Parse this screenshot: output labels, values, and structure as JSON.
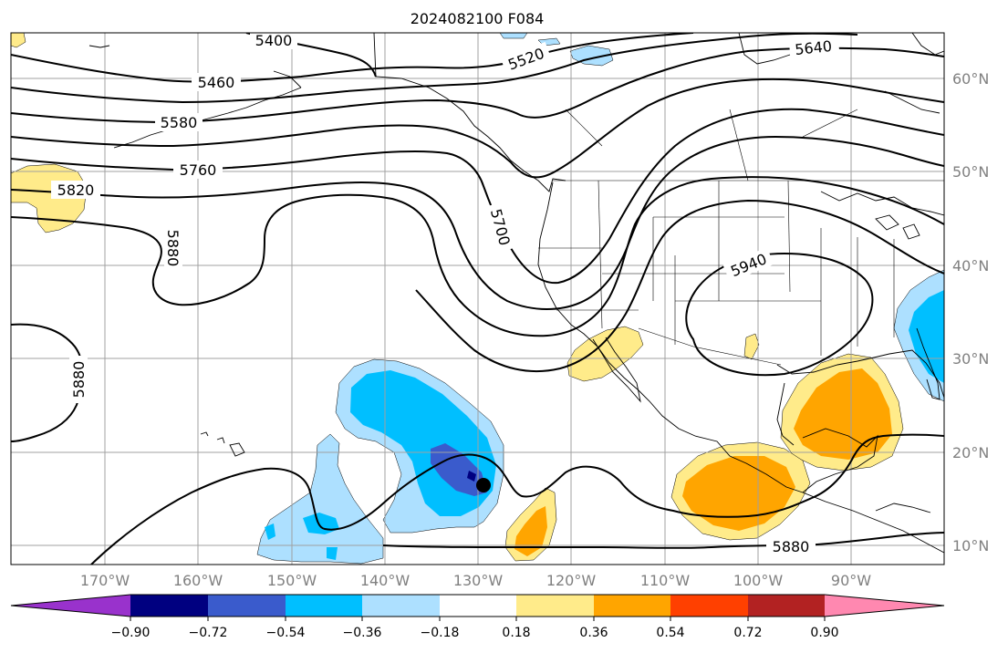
{
  "title": "2024082100 F084",
  "colors": {
    "c_n090": "#9932cc",
    "c_n090_072": "#000080",
    "c_n072_054": "#3a5bcc",
    "c_n054_036": "#00bfff",
    "c_n036_018": "#ade0ff",
    "c_n018_018": "#ffffff",
    "c_018_036": "#ffeb8a",
    "c_036_054": "#ffa500",
    "c_054_072": "#ff4000",
    "c_072_090": "#b22222",
    "c_090": "#ff88b0"
  },
  "latitude_labels": [
    "60°N",
    "50°N",
    "40°N",
    "30°N",
    "20°N",
    "10°N"
  ],
  "longitude_labels": [
    "170°W",
    "160°W",
    "150°W",
    "140°W",
    "130°W",
    "120°W",
    "110°W",
    "100°W",
    "90°W"
  ],
  "contour_labels": [
    "5400",
    "5460",
    "5580",
    "5520",
    "5640",
    "5760",
    "5820",
    "5880",
    "5700",
    "5940",
    "5880",
    "5880"
  ],
  "colorbar_ticks": [
    "−0.90",
    "−0.72",
    "−0.54",
    "−0.36",
    "−0.18",
    "0.18",
    "0.36",
    "0.54",
    "0.72",
    "0.90"
  ],
  "marker": "storm-center-dot"
}
